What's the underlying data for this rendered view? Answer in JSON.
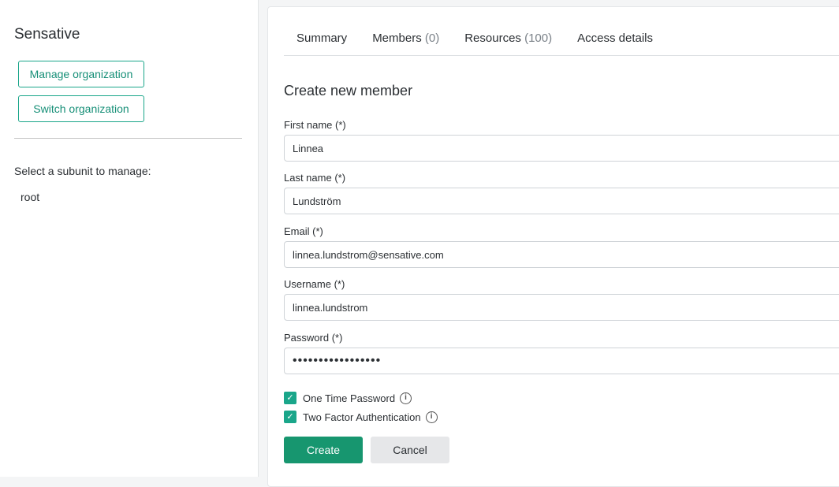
{
  "sidebar": {
    "org_name": "Sensative",
    "manage_label": "Manage organization",
    "switch_label": "Switch organization",
    "select_label": "Select a subunit to manage:",
    "subunits": [
      "root"
    ]
  },
  "tabs": [
    {
      "label": "Summary",
      "count": ""
    },
    {
      "label": "Members",
      "count": "(0)"
    },
    {
      "label": "Resources",
      "count": "(100)"
    },
    {
      "label": "Access details",
      "count": ""
    }
  ],
  "form": {
    "title": "Create new member",
    "first_name": {
      "label": "First name (*)",
      "value": "Linnea"
    },
    "last_name": {
      "label": "Last name (*)",
      "value": "Lundström"
    },
    "email": {
      "label": "Email (*)",
      "value": "linnea.lundstrom@sensative.com"
    },
    "username": {
      "label": "Username (*)",
      "value": "linnea.lundstrom"
    },
    "password": {
      "label": "Password (*)",
      "value": "•••••••••••••••••"
    },
    "otp": {
      "label": "One Time Password",
      "checked": true
    },
    "tfa": {
      "label": "Two Factor Authentication",
      "checked": true
    },
    "create_label": "Create",
    "cancel_label": "Cancel"
  },
  "colors": {
    "accent": "#17966f"
  }
}
